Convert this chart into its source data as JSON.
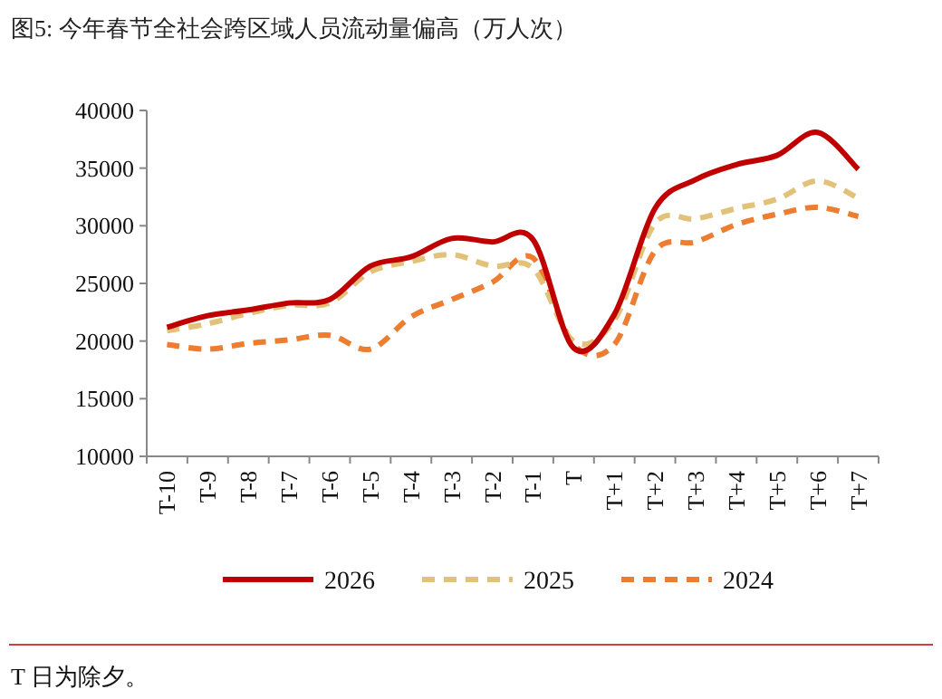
{
  "chart_data": {
    "type": "line",
    "title": "图5:   今年春节全社会跨区域人员流动量偏高（万人次）",
    "categories": [
      "T-10",
      "T-9",
      "T-8",
      "T-7",
      "T-6",
      "T-5",
      "T-4",
      "T-3",
      "T-2",
      "T-1",
      "T",
      "T+1",
      "T+2",
      "T+3",
      "T+4",
      "T+5",
      "T+6",
      "T+7"
    ],
    "series": [
      {
        "name": "2026",
        "color": "#c00000",
        "line_style": "solid",
        "values": [
          21200,
          22200,
          22700,
          23300,
          23600,
          26500,
          27300,
          28900,
          28600,
          28800,
          19400,
          22300,
          31500,
          34000,
          35300,
          36100,
          38100,
          34900
        ]
      },
      {
        "name": "2025",
        "color": "#e2c27a",
        "line_style": "dashed",
        "values": [
          20900,
          21500,
          22400,
          23100,
          23300,
          26000,
          26900,
          27500,
          26500,
          26300,
          20000,
          21800,
          30200,
          30600,
          31500,
          32300,
          33900,
          32400
        ]
      },
      {
        "name": "2024",
        "color": "#ed7d31",
        "line_style": "dashed",
        "values": [
          19700,
          19300,
          19800,
          20100,
          20500,
          19300,
          22100,
          23600,
          25100,
          27200,
          19700,
          19700,
          27800,
          28600,
          30100,
          31000,
          31600,
          30800
        ]
      }
    ],
    "ylim": [
      10000,
      40000
    ],
    "yticks": [
      10000,
      15000,
      20000,
      25000,
      30000,
      35000,
      40000
    ],
    "grid": false,
    "legend": "bottom",
    "annotations": [
      "T 日为除夕。"
    ]
  }
}
